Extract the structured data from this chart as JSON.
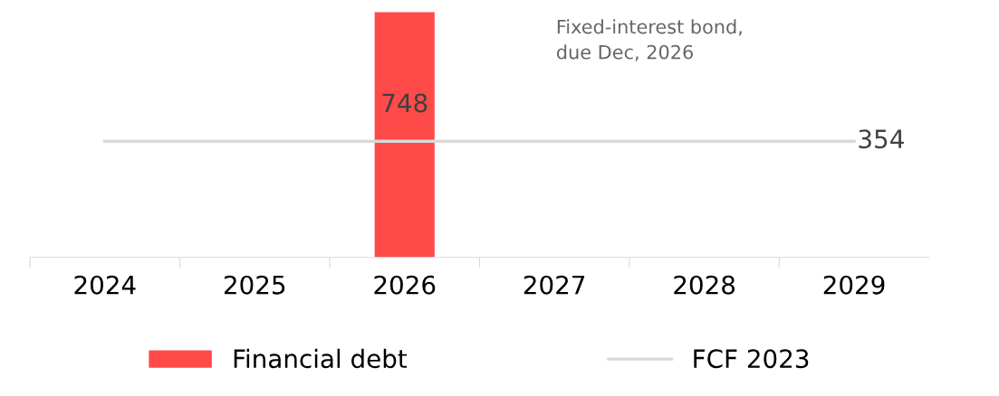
{
  "chart_data": {
    "type": "bar",
    "categories": [
      "2024",
      "2025",
      "2026",
      "2027",
      "2028",
      "2029"
    ],
    "series": [
      {
        "name": "Financial debt",
        "color": "#ff4a4a",
        "values": [
          null,
          null,
          748,
          null,
          null,
          null
        ],
        "value_labels": [
          null,
          null,
          "748",
          null,
          null,
          null
        ]
      },
      {
        "name": "FCF 2023",
        "type": "line",
        "color": "#d9d9d9",
        "values": [
          354,
          354,
          354,
          354,
          354,
          354
        ],
        "value_labels": [
          null,
          null,
          null,
          null,
          null,
          "354"
        ]
      }
    ],
    "annotations": [
      "Fixed-interest bond,\ndue Dec, 2026"
    ],
    "legend": "bottom",
    "grid": false
  }
}
